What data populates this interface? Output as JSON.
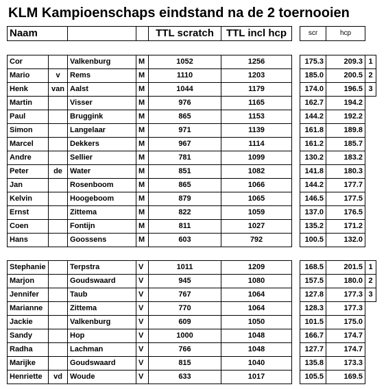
{
  "title": "KLM Kampioenschaps eindstand na de 2 toernooien",
  "header": {
    "naam": "Naam",
    "ttl_scratch": "TTL  scratch",
    "ttl_hcp": "TTL incl hcp",
    "scr": "scr",
    "hcp": "hcp"
  },
  "groups": [
    {
      "rows": [
        {
          "first": "Cor",
          "last": "Valkenburg",
          "g": "M",
          "scratch": "1052",
          "total": "1256",
          "scr": "175.3",
          "hcp": "209.3",
          "rank": "1"
        },
        {
          "first": "Mario",
          "prefix": "v",
          "last": "Rems",
          "g": "M",
          "scratch": "1110",
          "total": "1203",
          "scr": "185.0",
          "hcp": "200.5",
          "rank": "2"
        },
        {
          "first": "Henk",
          "prefix": "van",
          "last": "Aalst",
          "g": "M",
          "scratch": "1044",
          "total": "1179",
          "scr": "174.0",
          "hcp": "196.5",
          "rank": "3"
        },
        {
          "first": "Martin",
          "last": "Visser",
          "g": "M",
          "scratch": "976",
          "total": "1165",
          "scr": "162.7",
          "hcp": "194.2"
        },
        {
          "first": "Paul",
          "last": "Bruggink",
          "g": "M",
          "scratch": "865",
          "total": "1153",
          "scr": "144.2",
          "hcp": "192.2"
        },
        {
          "first": "Simon",
          "last": "Langelaar",
          "g": "M",
          "scratch": "971",
          "total": "1139",
          "scr": "161.8",
          "hcp": "189.8"
        },
        {
          "first": "Marcel",
          "last": "Dekkers",
          "g": "M",
          "scratch": "967",
          "total": "1114",
          "scr": "161.2",
          "hcp": "185.7"
        },
        {
          "first": "Andre",
          "last": "Sellier",
          "g": "M",
          "scratch": "781",
          "total": "1099",
          "scr": "130.2",
          "hcp": "183.2"
        },
        {
          "first": "Peter",
          "prefix": "de",
          "last": "Water",
          "g": "M",
          "scratch": "851",
          "total": "1082",
          "scr": "141.8",
          "hcp": "180.3"
        },
        {
          "first": "Jan",
          "last": "Rosenboom",
          "g": "M",
          "scratch": "865",
          "total": "1066",
          "scr": "144.2",
          "hcp": "177.7"
        },
        {
          "first": "Kelvin",
          "last": "Hoogeboom",
          "g": "M",
          "scratch": "879",
          "total": "1065",
          "scr": "146.5",
          "hcp": "177.5"
        },
        {
          "first": "Ernst",
          "last": "Zittema",
          "g": "M",
          "scratch": "822",
          "total": "1059",
          "scr": "137.0",
          "hcp": "176.5"
        },
        {
          "first": "Coen",
          "last": "Fontijn",
          "g": "M",
          "scratch": "811",
          "total": "1027",
          "scr": "135.2",
          "hcp": "171.2"
        },
        {
          "first": "Hans",
          "last": "Goossens",
          "g": "M",
          "scratch": "603",
          "total": "792",
          "scr": "100.5",
          "hcp": "132.0"
        }
      ]
    },
    {
      "rows": [
        {
          "first": "Stephanie",
          "last": "Terpstra",
          "g": "V",
          "scratch": "1011",
          "total": "1209",
          "scr": "168.5",
          "hcp": "201.5",
          "rank": "1"
        },
        {
          "first": "Marjon",
          "last": "Goudswaard",
          "g": "V",
          "scratch": "945",
          "total": "1080",
          "scr": "157.5",
          "hcp": "180.0",
          "rank": "2"
        },
        {
          "first": "Jennifer",
          "last": "Taub",
          "g": "V",
          "scratch": "767",
          "total": "1064",
          "scr": "127.8",
          "hcp": "177.3",
          "rank": "3"
        },
        {
          "first": "Marianne",
          "last": "Zittema",
          "g": "V",
          "scratch": "770",
          "total": "1064",
          "scr": "128.3",
          "hcp": "177.3"
        },
        {
          "first": "Jackie",
          "last": "Valkenburg",
          "g": "V",
          "scratch": "609",
          "total": "1050",
          "scr": "101.5",
          "hcp": "175.0"
        },
        {
          "first": "Sandy",
          "last": "Hop",
          "g": "V",
          "scratch": "1000",
          "total": "1048",
          "scr": "166.7",
          "hcp": "174.7"
        },
        {
          "first": "Radha",
          "last": "Lachman",
          "g": "V",
          "scratch": "766",
          "total": "1048",
          "scr": "127.7",
          "hcp": "174.7"
        },
        {
          "first": "Marijke",
          "last": "Goudswaard",
          "g": "V",
          "scratch": "815",
          "total": "1040",
          "scr": "135.8",
          "hcp": "173.3"
        },
        {
          "first": "Henriette",
          "prefix": "vd",
          "last": "Woude",
          "g": "V",
          "scratch": "633",
          "total": "1017",
          "scr": "105.5",
          "hcp": "169.5"
        }
      ]
    }
  ]
}
